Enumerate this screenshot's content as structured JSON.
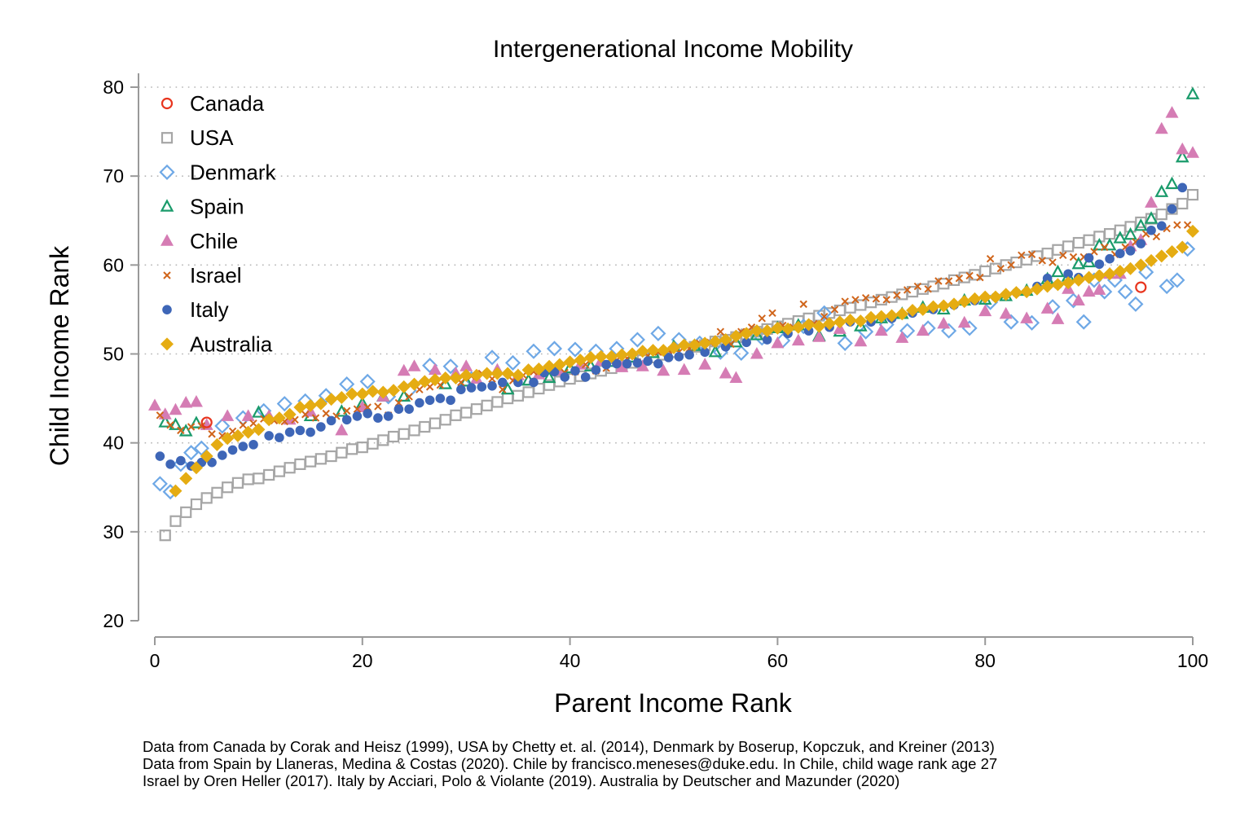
{
  "chart_data": {
    "type": "scatter",
    "title": "Intergenerational Income Mobility",
    "xlabel": "Parent Income Rank",
    "ylabel": "Child Income Rank",
    "xlim": [
      0,
      100
    ],
    "ylim": [
      20,
      80
    ],
    "xticks": [
      0,
      20,
      40,
      60,
      80,
      100
    ],
    "yticks": [
      20,
      30,
      40,
      50,
      60,
      70,
      80
    ],
    "grid": "dotted horizontal at y ticks",
    "legend_position": "top-left",
    "series": [
      {
        "name": "Canada",
        "marker": "circle-open",
        "color": "#e8351e",
        "x": [
          5,
          95
        ],
        "y": [
          42.3,
          57.5
        ]
      },
      {
        "name": "USA",
        "marker": "square-open",
        "color": "#a6a6a6",
        "x": [
          1,
          2,
          3,
          4,
          5,
          6,
          7,
          8,
          9,
          10,
          11,
          12,
          13,
          14,
          15,
          16,
          17,
          18,
          19,
          20,
          21,
          22,
          23,
          24,
          25,
          26,
          27,
          28,
          29,
          30,
          31,
          32,
          33,
          34,
          35,
          36,
          37,
          38,
          39,
          40,
          41,
          42,
          43,
          44,
          45,
          46,
          47,
          48,
          49,
          50,
          51,
          52,
          53,
          54,
          55,
          56,
          57,
          58,
          59,
          60,
          61,
          62,
          63,
          64,
          65,
          66,
          67,
          68,
          69,
          70,
          71,
          72,
          73,
          74,
          75,
          76,
          77,
          78,
          79,
          80,
          81,
          82,
          83,
          84,
          85,
          86,
          87,
          88,
          89,
          90,
          91,
          92,
          93,
          94,
          95,
          96,
          97,
          98,
          99,
          100
        ],
        "y": [
          29.6,
          31.2,
          32.2,
          33.1,
          33.8,
          34.4,
          35.0,
          35.5,
          35.9,
          36.0,
          36.4,
          36.8,
          37.2,
          37.6,
          37.9,
          38.2,
          38.5,
          38.9,
          39.3,
          39.5,
          39.9,
          40.3,
          40.7,
          41.0,
          41.4,
          41.8,
          42.2,
          42.6,
          43.1,
          43.4,
          43.8,
          44.2,
          44.6,
          45.0,
          45.3,
          45.7,
          46.1,
          46.5,
          46.9,
          47.2,
          47.5,
          47.8,
          48.1,
          48.4,
          48.7,
          49.0,
          49.3,
          49.6,
          49.9,
          50.2,
          50.5,
          50.8,
          51.0,
          51.4,
          51.6,
          51.9,
          52.2,
          52.5,
          52.8,
          53.1,
          53.4,
          53.7,
          54.0,
          54.3,
          54.6,
          54.9,
          55.2,
          55.5,
          55.8,
          56.1,
          56.4,
          56.7,
          57.0,
          57.3,
          57.6,
          57.9,
          58.3,
          58.6,
          58.9,
          59.3,
          59.6,
          60.0,
          60.3,
          60.6,
          61.0,
          61.3,
          61.7,
          62.1,
          62.5,
          62.8,
          63.2,
          63.5,
          63.9,
          64.3,
          64.8,
          65.2,
          65.7,
          66.3,
          66.9,
          67.9
        ]
      },
      {
        "name": "Denmark",
        "marker": "diamond-open",
        "color": "#6ea8e6",
        "x": [
          0.5,
          1.5,
          2.5,
          3.5,
          4.5,
          6.5,
          8.5,
          10.5,
          12.5,
          14.5,
          16.5,
          18.5,
          20.5,
          22.5,
          24.5,
          26.5,
          28.5,
          30.5,
          32.5,
          34.5,
          36.5,
          38.5,
          40.5,
          42.5,
          44.5,
          46.5,
          48.5,
          50.5,
          52.5,
          54.5,
          56.5,
          58.5,
          60.5,
          62.5,
          64.5,
          66.5,
          68.5,
          70.5,
          72.5,
          74.5,
          76.5,
          78.5,
          80.5,
          82.5,
          84.5,
          86.5,
          88.5,
          89.5,
          90.5,
          91.5,
          92.5,
          93.5,
          94.5,
          95.5,
          97.5,
          98.5,
          99.5
        ],
        "y": [
          35.4,
          34.5,
          37.6,
          38.9,
          39.4,
          41.9,
          42.8,
          43.6,
          44.4,
          44.7,
          45.3,
          46.6,
          46.9,
          45.2,
          45.9,
          48.7,
          48.6,
          47.2,
          49.6,
          49.0,
          50.3,
          50.6,
          50.5,
          50.3,
          50.6,
          51.6,
          52.3,
          51.6,
          51.2,
          50.2,
          50.1,
          51.8,
          51.5,
          53.1,
          54.6,
          51.2,
          52.5,
          53.3,
          52.6,
          52.9,
          52.6,
          52.9,
          55.8,
          53.6,
          53.5,
          55.3,
          56.0,
          53.6,
          58.3,
          57.0,
          58.3,
          57.0,
          55.6,
          59.2,
          57.6,
          58.3,
          61.8
        ]
      },
      {
        "name": "Spain",
        "marker": "triangle-open",
        "color": "#1a9b6b",
        "x": [
          1,
          2,
          3,
          4,
          10,
          15,
          18,
          20,
          22,
          24,
          28,
          30,
          34,
          36,
          38,
          40,
          42,
          44,
          46,
          48,
          50,
          52,
          54,
          56,
          58,
          60,
          62,
          64,
          66,
          68,
          70,
          72,
          74,
          76,
          78,
          80,
          82,
          84,
          86,
          87,
          88,
          89,
          90,
          91,
          92,
          93,
          94,
          95,
          96,
          97,
          98,
          99,
          100
        ],
        "y": [
          42.3,
          42.0,
          41.3,
          42.2,
          43.4,
          43.0,
          43.5,
          44.4,
          45.2,
          45.2,
          46.6,
          46.9,
          46.0,
          47.0,
          47.3,
          48.4,
          48.6,
          49.1,
          49.6,
          50.1,
          50.8,
          50.9,
          50.2,
          51.3,
          52.1,
          52.9,
          53.2,
          52.0,
          52.5,
          53.1,
          54.0,
          54.5,
          55.2,
          55.0,
          56.0,
          56.1,
          56.5,
          57.1,
          58.4,
          59.2,
          58.7,
          60.1,
          60.3,
          62.2,
          62.2,
          63.0,
          63.4,
          64.4,
          65.2,
          68.2,
          69.1,
          72.1,
          79.2
        ]
      },
      {
        "name": "Chile",
        "marker": "triangle-filled",
        "color": "#d57cb4",
        "x": [
          0,
          1,
          2,
          3,
          4,
          5,
          7,
          9,
          11,
          13,
          15,
          18,
          20,
          22,
          24,
          25,
          27,
          29,
          30,
          31,
          33,
          35,
          37,
          39,
          41,
          43,
          45,
          47,
          49,
          51,
          53,
          55,
          56,
          58,
          60,
          62,
          64,
          66,
          68,
          70,
          72,
          74,
          76,
          78,
          80,
          82,
          84,
          86,
          87,
          88,
          89,
          90,
          91,
          92,
          93,
          94,
          95,
          96,
          97,
          98,
          99,
          100
        ],
        "y": [
          44.2,
          43.2,
          43.7,
          44.5,
          44.6,
          42.0,
          43.0,
          43.0,
          43.0,
          42.6,
          43.5,
          41.4,
          44.0,
          45.2,
          48.1,
          48.6,
          48.2,
          47.8,
          48.6,
          47.2,
          48.2,
          47.6,
          47.7,
          48.1,
          48.8,
          49.2,
          48.5,
          48.6,
          48.1,
          48.2,
          48.8,
          47.8,
          47.3,
          50.0,
          51.2,
          51.5,
          51.9,
          52.8,
          51.4,
          52.6,
          51.8,
          52.6,
          53.4,
          53.5,
          54.8,
          54.5,
          54.0,
          55.1,
          53.9,
          57.3,
          56.0,
          57.0,
          57.2,
          59.0,
          59.0,
          62.1,
          62.8,
          67.0,
          75.3,
          77.1,
          73.0,
          72.6
        ]
      },
      {
        "name": "Israel",
        "marker": "x",
        "color": "#d0651b",
        "x": [
          0.5,
          1.5,
          2.5,
          3.5,
          4.5,
          5.5,
          6.5,
          7.5,
          8.5,
          9.5,
          10.5,
          11.5,
          12.5,
          13.5,
          14.5,
          15.5,
          16.5,
          17.5,
          18.5,
          19.5,
          20.5,
          21.5,
          22.5,
          23.5,
          24.5,
          25.5,
          26.5,
          27.5,
          28.5,
          29.5,
          30.5,
          31.5,
          32.5,
          33.5,
          34.5,
          35.5,
          36.5,
          37.5,
          38.5,
          39.5,
          40.5,
          41.5,
          42.5,
          43.5,
          44.5,
          45.5,
          46.5,
          47.5,
          48.5,
          49.5,
          50.5,
          51.5,
          52.5,
          53.5,
          54.5,
          55.5,
          56.5,
          57.5,
          58.5,
          59.5,
          60.5,
          61.5,
          62.5,
          63.5,
          64.5,
          65.5,
          66.5,
          67.5,
          68.5,
          69.5,
          70.5,
          71.5,
          72.5,
          73.5,
          74.5,
          75.5,
          76.5,
          77.5,
          78.5,
          79.5,
          80.5,
          81.5,
          82.5,
          83.5,
          84.5,
          85.5,
          86.5,
          87.5,
          88.5,
          89.5,
          90.5,
          91.5,
          92.5,
          93.5,
          94.5,
          95.5,
          96.5,
          97.5,
          98.5,
          99.5
        ],
        "y": [
          43.1,
          42.0,
          41.4,
          41.8,
          41.9,
          41.0,
          40.8,
          41.3,
          42.0,
          42.2,
          42.7,
          42.5,
          42.4,
          42.6,
          43.2,
          42.8,
          43.3,
          43.0,
          43.6,
          43.8,
          44.0,
          44.1,
          43.1,
          44.5,
          45.2,
          46.0,
          46.3,
          46.5,
          44.8,
          46.8,
          47.5,
          47.8,
          47.2,
          46.0,
          47.0,
          47.6,
          48.0,
          48.2,
          48.5,
          47.9,
          48.0,
          48.8,
          48.1,
          48.4,
          49.3,
          49.5,
          49.1,
          49.8,
          50.2,
          50.4,
          50.2,
          50.6,
          51.2,
          51.3,
          52.5,
          51.1,
          52.5,
          53.0,
          54.0,
          54.6,
          53.2,
          53.0,
          55.6,
          53.4,
          54.2,
          55.0,
          55.9,
          56.1,
          56.3,
          56.2,
          56.1,
          56.6,
          57.2,
          57.6,
          57.3,
          58.2,
          58.2,
          58.5,
          58.8,
          58.6,
          60.7,
          59.6,
          60.0,
          61.1,
          61.2,
          60.5,
          60.3,
          61.1,
          60.9,
          60.9,
          61.5,
          62.0,
          61.2,
          62.0,
          62.6,
          63.5,
          63.2,
          64.1,
          64.5,
          64.5
        ]
      },
      {
        "name": "Italy",
        "marker": "circle-filled",
        "color": "#3e66b7",
        "x": [
          0.5,
          1.5,
          2.5,
          3.5,
          4.5,
          5.5,
          6.5,
          7.5,
          8.5,
          9.5,
          11,
          12,
          13,
          14,
          15,
          16,
          17,
          18.5,
          19.5,
          20.5,
          21.5,
          22.5,
          23.5,
          24.5,
          25.5,
          26.5,
          27.5,
          28.5,
          29.5,
          30.5,
          31.5,
          32.5,
          33.5,
          35,
          36.5,
          37.5,
          38.5,
          39.5,
          40.5,
          41.5,
          42.5,
          43.5,
          44.5,
          45.5,
          46.5,
          47.5,
          48.5,
          49.5,
          50.5,
          51.5,
          53,
          55,
          57,
          59,
          61,
          63,
          65,
          67,
          69,
          71,
          73,
          75,
          77,
          79,
          81,
          83,
          85,
          86,
          87,
          88,
          89,
          90,
          91,
          92,
          93,
          94,
          95,
          96,
          97,
          98,
          99
        ],
        "y": [
          38.5,
          37.6,
          38.0,
          37.4,
          37.8,
          37.8,
          38.6,
          39.2,
          39.6,
          39.8,
          40.8,
          40.6,
          41.2,
          41.4,
          41.2,
          41.8,
          42.5,
          42.6,
          43.0,
          43.3,
          42.8,
          43.0,
          43.8,
          43.8,
          44.5,
          44.8,
          45.0,
          44.8,
          46.0,
          46.2,
          46.3,
          46.4,
          46.8,
          46.8,
          46.8,
          47.9,
          48.0,
          47.4,
          48.1,
          47.4,
          48.2,
          48.8,
          48.9,
          48.9,
          49.0,
          49.2,
          48.9,
          49.6,
          49.7,
          49.9,
          50.2,
          50.8,
          51.3,
          51.6,
          52.3,
          52.6,
          53.0,
          53.6,
          53.6,
          54.0,
          54.6,
          55.0,
          55.5,
          56.0,
          56.4,
          56.9,
          57.6,
          58.5,
          57.8,
          59.0,
          58.6,
          60.8,
          60.1,
          60.7,
          61.3,
          61.6,
          62.4,
          63.9,
          64.4,
          66.3,
          68.7
        ]
      },
      {
        "name": "Australia",
        "marker": "diamond-filled",
        "color": "#e5ac12",
        "x": [
          2,
          3,
          4,
          5,
          6,
          7,
          8,
          9,
          10,
          11,
          12,
          13,
          14,
          15,
          16,
          17,
          18,
          19,
          20,
          21,
          22,
          23,
          24,
          25,
          26,
          27,
          28,
          29,
          30,
          31,
          32,
          33,
          34,
          35,
          36,
          37,
          38,
          39,
          40,
          41,
          42,
          43,
          44,
          45,
          46,
          47,
          48,
          49,
          50,
          51,
          52,
          53,
          54,
          55,
          56,
          57,
          58,
          59,
          60,
          61,
          62,
          63,
          64,
          65,
          66,
          67,
          68,
          69,
          70,
          71,
          72,
          73,
          74,
          75,
          76,
          77,
          78,
          79,
          80,
          81,
          82,
          83,
          84,
          85,
          86,
          87,
          88,
          89,
          90,
          91,
          92,
          93,
          94,
          95,
          96,
          97,
          98,
          99,
          100
        ],
        "y": [
          34.6,
          36.0,
          37.2,
          38.5,
          39.8,
          40.5,
          40.8,
          41.2,
          41.5,
          42.6,
          42.8,
          43.2,
          44.0,
          44.2,
          44.4,
          44.9,
          45.1,
          45.5,
          45.5,
          45.8,
          45.7,
          45.9,
          46.3,
          46.6,
          46.9,
          47.1,
          47.3,
          47.3,
          47.6,
          47.6,
          47.8,
          47.8,
          47.8,
          47.6,
          48.2,
          48.3,
          48.6,
          48.8,
          49.1,
          49.3,
          49.6,
          49.7,
          49.7,
          49.9,
          50.0,
          50.3,
          50.4,
          50.4,
          50.7,
          51.0,
          51.0,
          51.2,
          51.4,
          51.6,
          52.0,
          52.3,
          52.6,
          52.6,
          52.9,
          52.8,
          53.0,
          53.3,
          53.1,
          53.4,
          53.6,
          53.8,
          53.7,
          54.1,
          54.2,
          54.3,
          54.5,
          54.9,
          55.0,
          55.3,
          55.4,
          55.6,
          55.9,
          56.2,
          56.4,
          56.4,
          56.7,
          56.9,
          57.0,
          57.3,
          57.6,
          57.8,
          58.0,
          58.3,
          58.6,
          58.8,
          59.0,
          59.3,
          59.6,
          60.0,
          60.5,
          61.0,
          61.5,
          62.0,
          63.8
        ]
      }
    ]
  },
  "notes": [
    "Data from Canada by Corak and Heisz (1999), USA by Chetty et. al. (2014), Denmark by Boserup, Kopczuk, and Kreiner (2013)",
    "Data from Spain by Llaneras, Medina & Costas (2020). Chile by francisco.meneses@duke.edu. In Chile, child wage rank age 27",
    "Israel by Oren Heller (2017). Italy by Acciari, Polo & Violante (2019). Australia by Deutscher and Mazunder (2020)"
  ]
}
